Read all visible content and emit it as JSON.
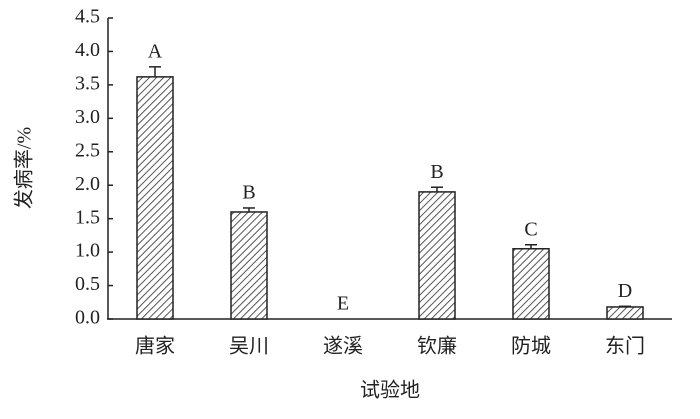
{
  "chart_data": {
    "type": "bar",
    "x_label": "试验地",
    "y_label": "发病率/%",
    "categories": [
      "唐家",
      "吴川",
      "遂溪",
      "钦廉",
      "防城",
      "东门"
    ],
    "values": [
      3.62,
      1.6,
      0,
      1.9,
      1.05,
      0.18
    ],
    "errors": [
      0.15,
      0.06,
      0,
      0.07,
      0.06,
      0.01
    ],
    "significance": [
      "A",
      "B",
      "E",
      "B",
      "C",
      "D"
    ],
    "color": "#555555",
    "ylim": [
      0,
      4.5
    ],
    "yticks": [
      {
        "value": 0,
        "label": "0.0"
      },
      0.5,
      {
        "value": 1,
        "label": "1.0"
      },
      1.5,
      {
        "value": 2,
        "label": "2.0"
      },
      2.5,
      {
        "value": 3,
        "label": "3.0"
      },
      3.5,
      {
        "value": 4,
        "label": "4.0"
      },
      4.5
    ]
  }
}
